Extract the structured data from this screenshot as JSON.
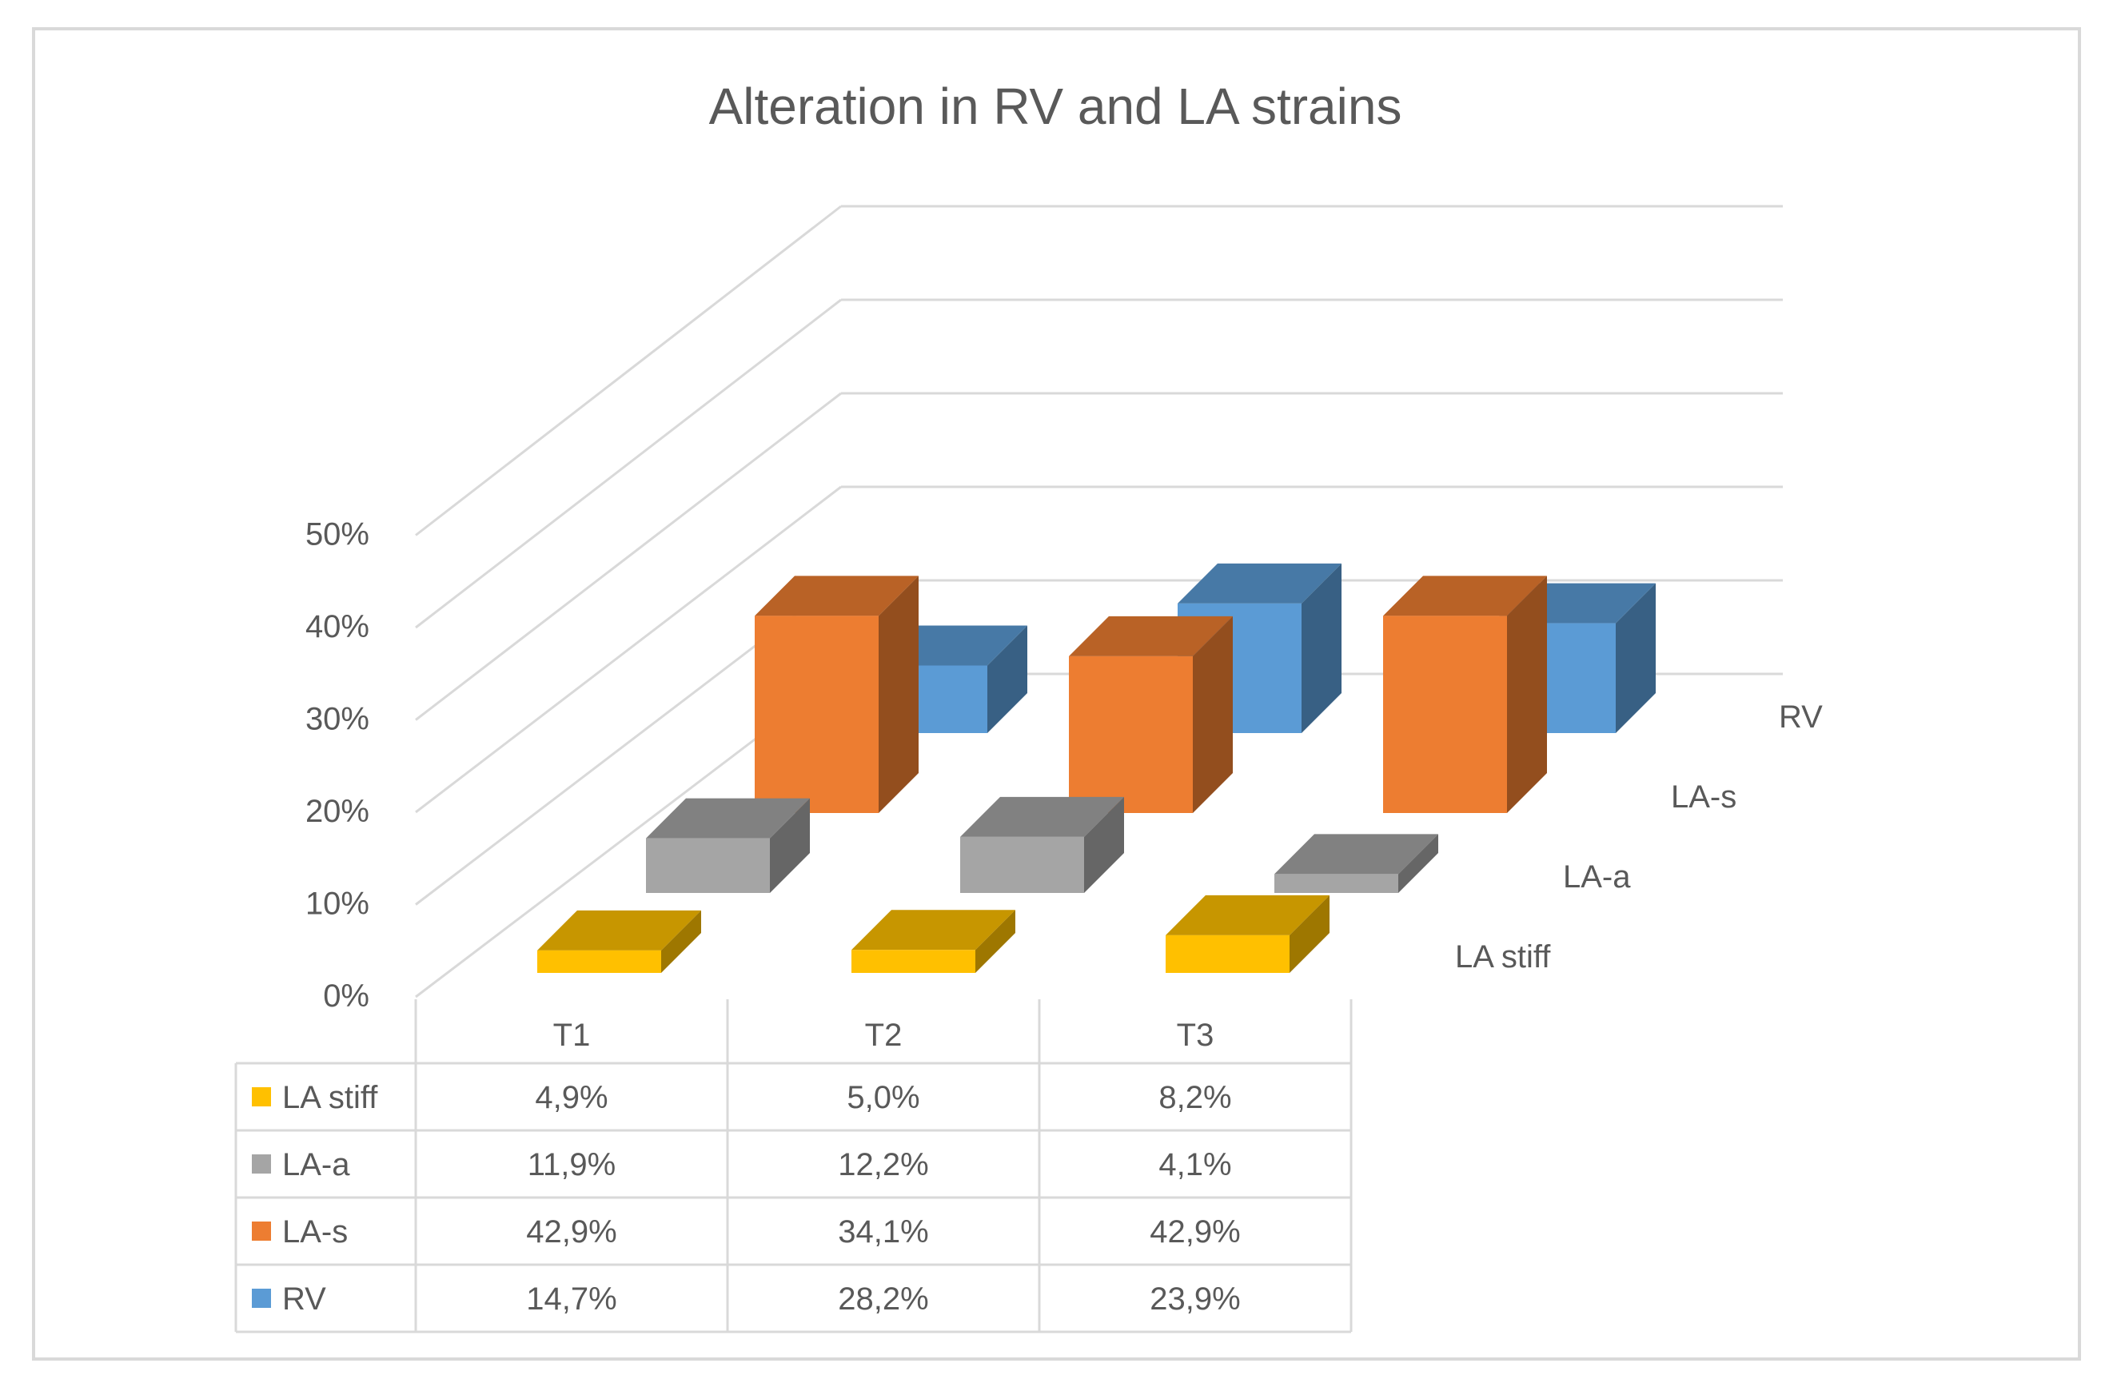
{
  "chart_data": {
    "type": "bar",
    "subtype": "3d-column-with-data-table",
    "title": "Alteration in RV and LA strains",
    "categories": [
      "T1",
      "T2",
      "T3"
    ],
    "y_tick_labels": [
      "0%",
      "10%",
      "20%",
      "30%",
      "40%",
      "50%"
    ],
    "ylim": [
      0,
      50
    ],
    "series": [
      {
        "name": "LA stiff",
        "values": [
          4.9,
          5.0,
          8.2
        ],
        "labels": [
          "4,9%",
          "5,0%",
          "8,2%"
        ],
        "color": "#ffc000"
      },
      {
        "name": "LA-a",
        "values": [
          11.9,
          12.2,
          4.1
        ],
        "labels": [
          "11,9%",
          "12,2%",
          "4,1%"
        ],
        "color": "#a5a5a5"
      },
      {
        "name": "LA-s",
        "values": [
          42.9,
          34.1,
          42.9
        ],
        "labels": [
          "42,9%",
          "34,1%",
          "42,9%"
        ],
        "color": "#ed7d31"
      },
      {
        "name": "RV",
        "values": [
          14.7,
          28.2,
          23.9
        ],
        "labels": [
          "14,7%",
          "28,2%",
          "23,9%"
        ],
        "color": "#5b9bd5"
      }
    ],
    "depth_axis_labels": [
      "LA stiff",
      "LA-a",
      "LA-s",
      "RV"
    ],
    "gridlines": true,
    "legend": "data-table"
  }
}
